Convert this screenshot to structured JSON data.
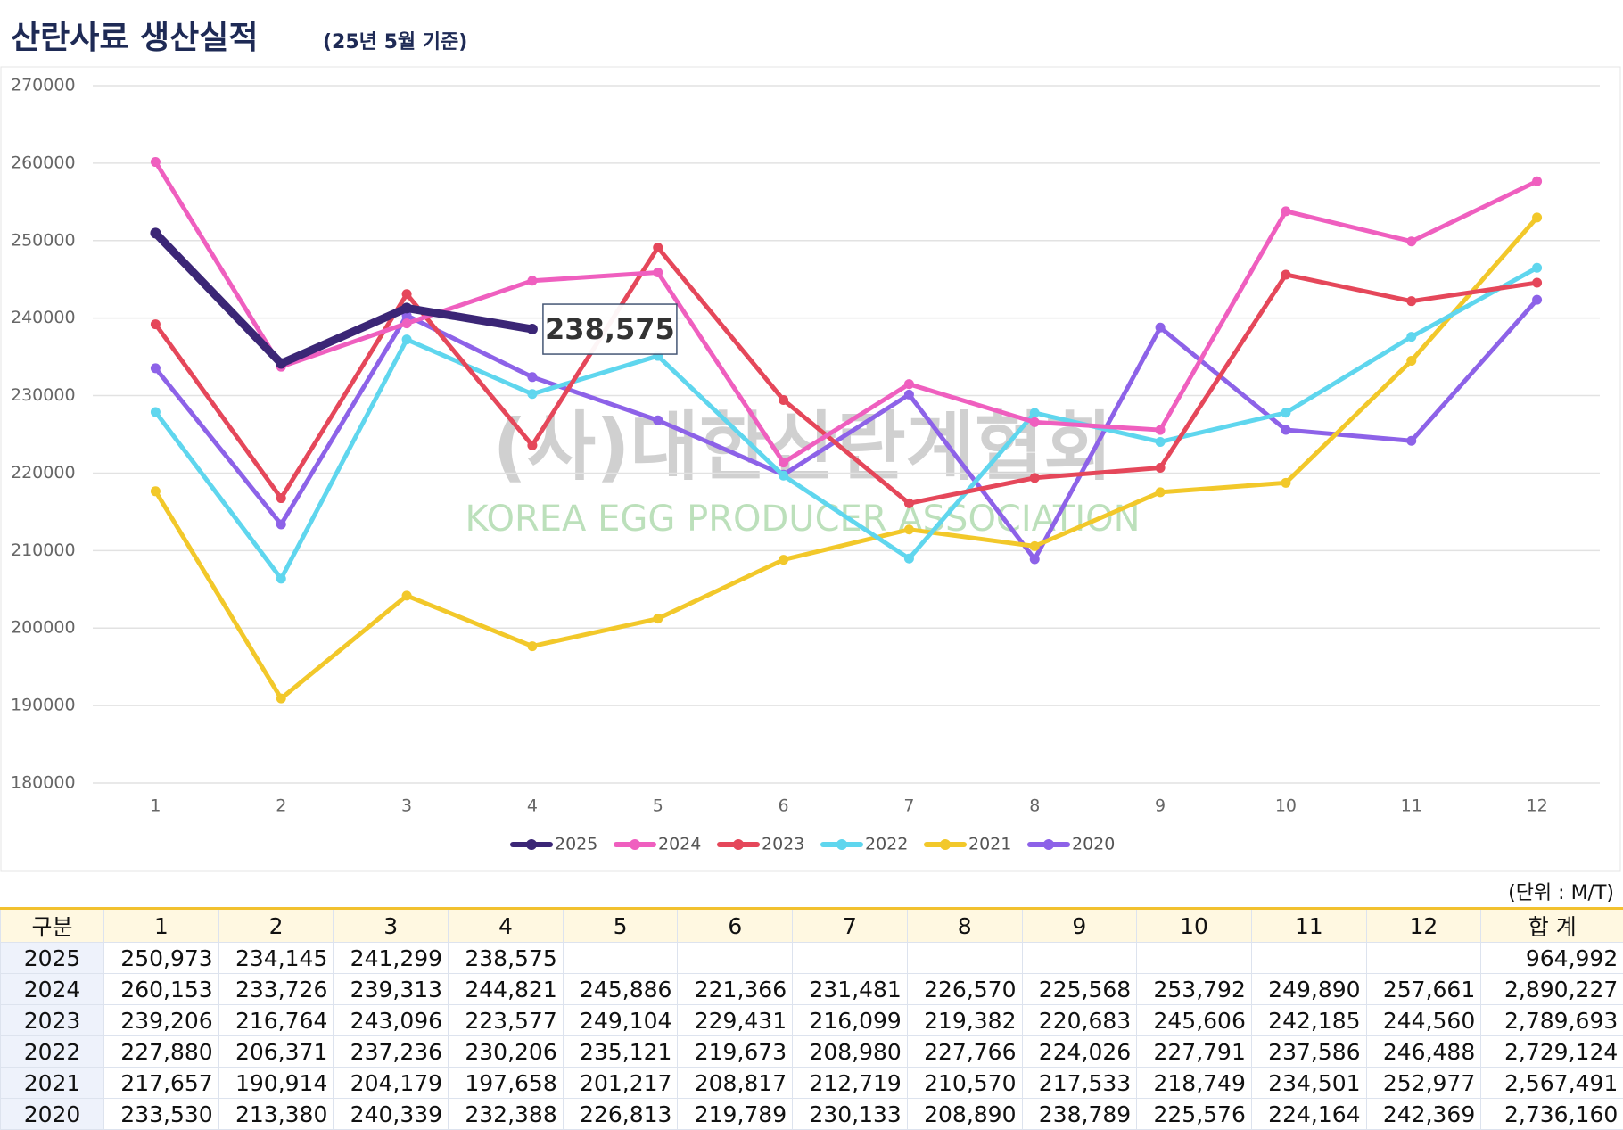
{
  "chart_data": {
    "type": "line",
    "title": "산란사료 생산실적",
    "subtitle": "(25년 5월 기준)",
    "categories": [
      "1",
      "2",
      "3",
      "4",
      "5",
      "6",
      "7",
      "8",
      "9",
      "10",
      "11",
      "12"
    ],
    "series": [
      {
        "name": "2025",
        "color": "#3b2676",
        "values": [
          250973,
          234145,
          241299,
          238575,
          null,
          null,
          null,
          null,
          null,
          null,
          null,
          null
        ]
      },
      {
        "name": "2024",
        "color": "#ef5fbf",
        "values": [
          260153,
          233726,
          239313,
          244821,
          245886,
          221366,
          231481,
          226570,
          225568,
          253792,
          249890,
          257661
        ]
      },
      {
        "name": "2023",
        "color": "#e5475a",
        "values": [
          239206,
          216764,
          243096,
          223577,
          249104,
          229431,
          216099,
          219382,
          220683,
          245606,
          242185,
          244560
        ]
      },
      {
        "name": "2022",
        "color": "#5fd6ee",
        "values": [
          227880,
          206371,
          237236,
          230206,
          235121,
          219673,
          208980,
          227766,
          224026,
          227791,
          237586,
          246488
        ]
      },
      {
        "name": "2021",
        "color": "#f2c82a",
        "values": [
          217657,
          190914,
          204179,
          197658,
          201217,
          208817,
          212719,
          210570,
          217533,
          218749,
          234501,
          252977
        ]
      },
      {
        "name": "2020",
        "color": "#8d62e8",
        "values": [
          233530,
          213380,
          240339,
          232388,
          226813,
          219789,
          230133,
          208890,
          238789,
          225576,
          224164,
          242369
        ]
      }
    ],
    "ylim": [
      180000,
      270000
    ],
    "yticks": [
      180000,
      190000,
      200000,
      210000,
      220000,
      230000,
      240000,
      250000,
      260000,
      270000
    ],
    "grid": true,
    "legend": "bottom",
    "annotation": {
      "series": 0,
      "index": 3,
      "text": "238,575"
    },
    "watermark": {
      "name": "(사)대한산란계협회",
      "english": "KOREA EGG PRODUCER ASSOCIATION"
    }
  },
  "unit": "(단위 : M/T)",
  "table": {
    "header": [
      "구분",
      "1",
      "2",
      "3",
      "4",
      "5",
      "6",
      "7",
      "8",
      "9",
      "10",
      "11",
      "12",
      "합 계"
    ],
    "rows": [
      [
        "2025",
        "250,973",
        "234,145",
        "241,299",
        "238,575",
        null,
        null,
        null,
        null,
        null,
        null,
        null,
        null,
        "964,992"
      ],
      [
        "2024",
        "260,153",
        "233,726",
        "239,313",
        "244,821",
        "245,886",
        "221,366",
        "231,481",
        "226,570",
        "225,568",
        "253,792",
        "249,890",
        "257,661",
        "2,890,227"
      ],
      [
        "2023",
        "239,206",
        "216,764",
        "243,096",
        "223,577",
        "249,104",
        "229,431",
        "216,099",
        "219,382",
        "220,683",
        "245,606",
        "242,185",
        "244,560",
        "2,789,693"
      ],
      [
        "2022",
        "227,880",
        "206,371",
        "237,236",
        "230,206",
        "235,121",
        "219,673",
        "208,980",
        "227,766",
        "224,026",
        "227,791",
        "237,586",
        "246,488",
        "2,729,124"
      ],
      [
        "2021",
        "217,657",
        "190,914",
        "204,179",
        "197,658",
        "201,217",
        "208,817",
        "212,719",
        "210,570",
        "217,533",
        "218,749",
        "234,501",
        "252,977",
        "2,567,491"
      ],
      [
        "2020",
        "233,530",
        "213,380",
        "240,339",
        "232,388",
        "226,813",
        "219,789",
        "230,133",
        "208,890",
        "238,789",
        "225,576",
        "224,164",
        "242,369",
        "2,736,160"
      ]
    ]
  }
}
